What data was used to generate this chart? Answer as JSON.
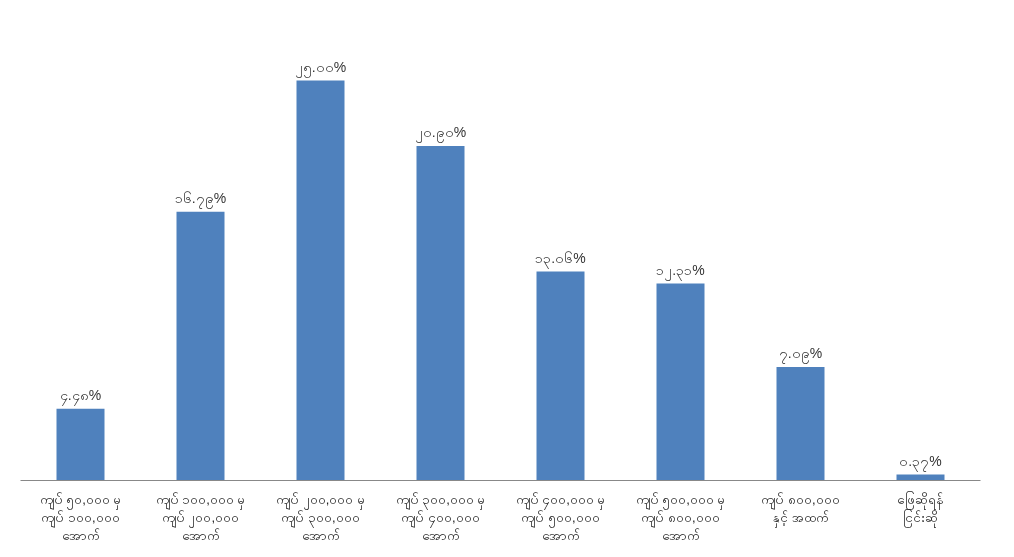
{
  "chart_data": {
    "type": "bar",
    "categories": [
      "ကျပ် ၅၀,၀၀၀ မှ ကျပ် ၁၀၀,၀၀၀ အောက်",
      "ကျပ် ၁၀၀,၀၀၀ မှ ကျပ် ၂၀၀,၀၀၀ အောက်",
      "ကျပ် ၂၀၀,၀၀၀ မှ ကျပ် ၃၀၀,၀၀၀ အောက်",
      "ကျပ် ၃၀၀,၀၀၀ မှ ကျပ် ၄၀၀,၀၀၀ အောက်",
      "ကျပ် ၄၀၀,၀၀၀ မှ ကျပ် ၅၀၀,၀၀၀ အောက်",
      "ကျပ် ၅၀၀,၀၀၀ မှ ကျပ် ၈၀၀,၀၀၀ အောက်",
      "ကျပ် ၈၀၀,၀၀၀ နှင့် အထက်",
      "ဖြေဆိုရန် ငြင်းဆို"
    ],
    "values": [
      4.48,
      16.79,
      25.0,
      20.9,
      13.06,
      12.31,
      7.09,
      0.37
    ],
    "value_labels": [
      "၄.၄၈%",
      "၁၆.၇၉%",
      "၂၅.၀၀%",
      "၂၀.၉၀%",
      "၁၃.၀၆%",
      "၁၂.၃၁%",
      "၇.၀၉%",
      "၀.၃၇%"
    ],
    "color": "#4f81bd"
  }
}
